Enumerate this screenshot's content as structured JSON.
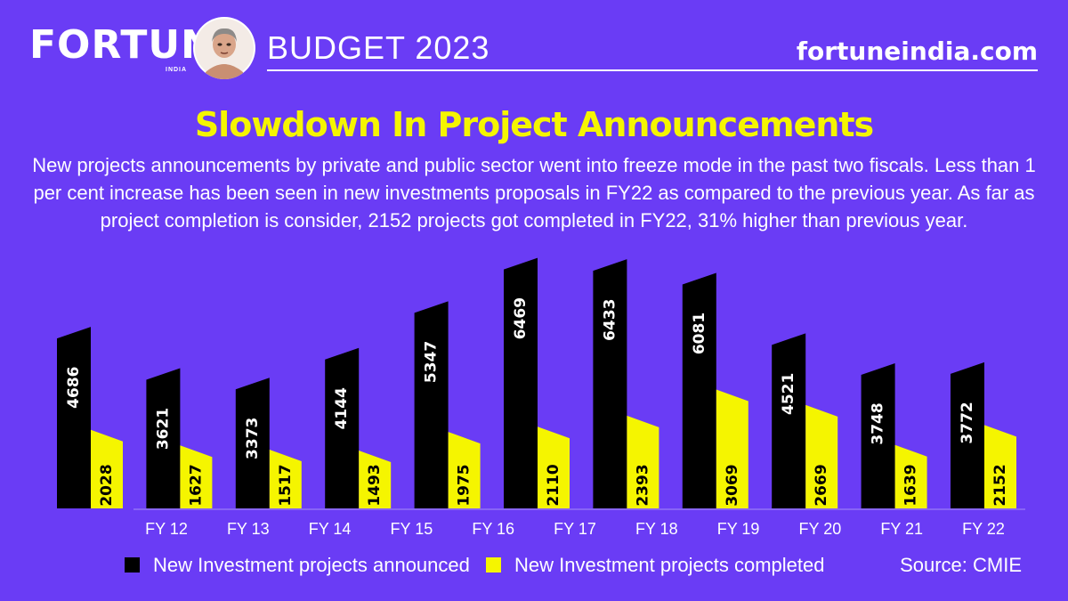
{
  "header": {
    "brand": "FORTUNE",
    "brand_sub": "INDIA",
    "budget_title": "BUDGET 2023",
    "site": "fortuneindia.com"
  },
  "colors": {
    "background": "#6a3cf5",
    "announced": "#000000",
    "completed": "#f5f500",
    "title": "#f5f500"
  },
  "chart_data": {
    "type": "bar",
    "title": "Slowdown In Project Announcements",
    "subtitle": "New projects announcements by private and public sector went into freeze mode in the past two fiscals. Less than 1 per cent increase has been seen in new investments proposals in FY22 as compared to the previous year. As far as project completion is consider, 2152 projects got completed in FY22, 31% higher than previous year.",
    "categories": [
      "FY 12",
      "FY 13",
      "FY 14",
      "FY 15",
      "FY 16",
      "FY 17",
      "FY 18",
      "FY 19",
      "FY 20",
      "FY 21",
      "FY 22"
    ],
    "series": [
      {
        "name": "New Investment projects announced",
        "values": [
          4686,
          3621,
          3373,
          4144,
          5347,
          6469,
          6433,
          6081,
          4521,
          3748,
          3772
        ]
      },
      {
        "name": "New Investment projects completed",
        "values": [
          2028,
          1627,
          1517,
          1493,
          1975,
          2110,
          2393,
          3069,
          2669,
          1639,
          2152
        ]
      }
    ],
    "source": "Source: CMIE",
    "grid": false,
    "legend_position": "bottom"
  }
}
